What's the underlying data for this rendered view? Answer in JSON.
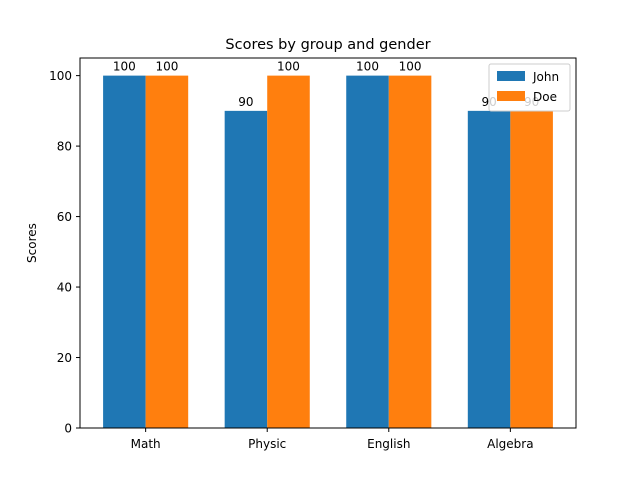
{
  "chart_data": {
    "type": "bar",
    "title": "Scores by group and gender",
    "xlabel": "",
    "ylabel": "Scores",
    "categories": [
      "Math",
      "Physic",
      "English",
      "Algebra"
    ],
    "series": [
      {
        "name": "John",
        "values": [
          100,
          90,
          100,
          90
        ],
        "color": "#1f77b4"
      },
      {
        "name": "Doe",
        "values": [
          100,
          100,
          100,
          90
        ],
        "color": "#ff7f0e"
      }
    ],
    "ylim": [
      0,
      105
    ],
    "yticks": [
      0,
      20,
      40,
      60,
      80,
      100
    ],
    "grid": false,
    "legend_position": "top-right",
    "bar_labels": true
  }
}
